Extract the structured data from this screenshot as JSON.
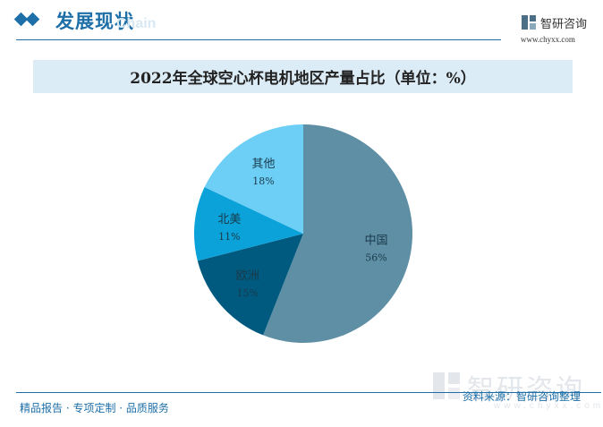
{
  "header": {
    "section_title": "发展现状",
    "watermark_en": "Chain",
    "logo_name": "智研咨询",
    "logo_url": "www.chyxx.com"
  },
  "chart_data": {
    "type": "pie",
    "title": "2022年全球空心杯电机地区产量占比（单位：%）",
    "slices": [
      {
        "label": "中国",
        "value": 56,
        "value_label": "56%",
        "color": "#5e8fa5"
      },
      {
        "label": "欧洲",
        "value": 15,
        "value_label": "15%",
        "color": "#005a80"
      },
      {
        "label": "北美",
        "value": 11,
        "value_label": "11%",
        "color": "#0aa2d8"
      },
      {
        "label": "其他",
        "value": 18,
        "value_label": "18%",
        "color": "#6dcff6"
      }
    ]
  },
  "watermark": {
    "name": "智研咨询",
    "url": "www.chyxx.com"
  },
  "footer": {
    "left": "精品报告 · 专项定制 · 品质服务",
    "source": "资料来源：智研咨询整理"
  }
}
